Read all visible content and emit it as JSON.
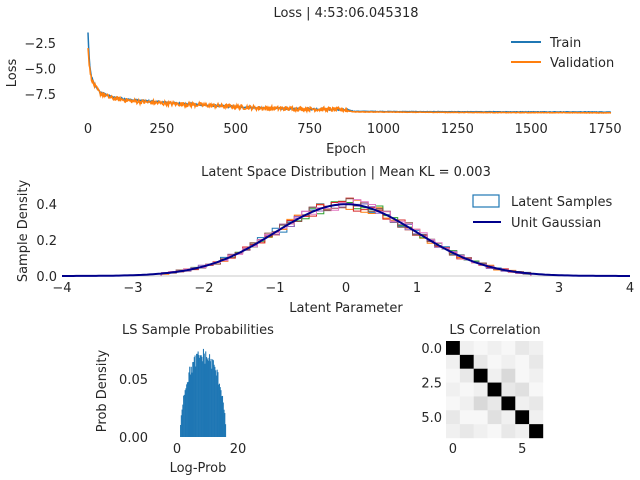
{
  "chart_data": [
    {
      "type": "line",
      "title": "Loss | 4:53:06.045318",
      "xlabel": "Epoch",
      "ylabel": "Loss",
      "xlim": [
        -20,
        1790
      ],
      "ylim": [
        -9.6,
        -1.2
      ],
      "xticks": [
        "0",
        "250",
        "500",
        "750",
        "1000",
        "1250",
        "1500",
        "1750"
      ],
      "yticks": [
        "-2.5",
        "-5.0",
        "-7.5"
      ],
      "legend": "top-right",
      "grid": false,
      "series": [
        {
          "name": "Train",
          "color": "#1f77b4",
          "x": [
            0,
            3,
            6,
            10,
            20,
            40,
            80,
            150,
            250,
            400,
            600,
            800,
            880,
            900,
            1000,
            1200,
            1400,
            1600,
            1770
          ],
          "y": [
            -1.5,
            -3.5,
            -4.8,
            -5.6,
            -6.5,
            -7.3,
            -7.8,
            -8.1,
            -8.3,
            -8.6,
            -8.9,
            -9.0,
            -9.05,
            -9.2,
            -9.22,
            -9.24,
            -9.25,
            -9.26,
            -9.27
          ]
        },
        {
          "name": "Validation",
          "color": "#ff7f0e",
          "x": [
            0,
            3,
            6,
            10,
            20,
            40,
            80,
            150,
            250,
            400,
            600,
            800,
            870,
            880,
            900,
            1000,
            1200,
            1400,
            1600,
            1770
          ],
          "y": [
            -2.9,
            -4.2,
            -5.1,
            -5.8,
            -6.6,
            -7.4,
            -7.9,
            -8.2,
            -8.4,
            -8.6,
            -8.9,
            -9.0,
            -9.05,
            -9.15,
            -9.25,
            -9.27,
            -9.3,
            -9.32,
            -9.33,
            -9.35
          ]
        }
      ]
    },
    {
      "type": "histogram",
      "title": "Latent Space Distribution | Mean KL = 0.003",
      "xlabel": "Latent Parameter",
      "ylabel": "Sample Density",
      "xlim": [
        -4,
        4
      ],
      "ylim": [
        0,
        0.5
      ],
      "xticks": [
        "-4",
        "-3",
        "-2",
        "-1",
        "0",
        "1",
        "2",
        "3",
        "4"
      ],
      "yticks": [
        "0.0",
        "0.2",
        "0.4"
      ],
      "legend": "top-right",
      "series": [
        {
          "name": "Latent Samples",
          "kind": "step-histogram",
          "dimensions": 7,
          "colors": [
            "#1f77b4",
            "#ff7f0e",
            "#2ca02c",
            "#d62728",
            "#9467bd",
            "#8c564b",
            "#e377c2"
          ],
          "range": [
            -2.6,
            2.6
          ],
          "bins": 50
        },
        {
          "name": "Unit Gaussian",
          "kind": "pdf",
          "color": "#00008b",
          "mean": 0,
          "std": 1
        }
      ]
    },
    {
      "type": "histogram",
      "title": "LS Sample Probabilities",
      "xlabel": "Log-Prob",
      "ylabel": "Prob Density",
      "xlim": [
        -7,
        26
      ],
      "ylim": [
        0,
        0.075
      ],
      "xticks": [
        "0",
        "20"
      ],
      "yticks": [
        "0.00",
        "0.05"
      ],
      "color": "#1f77b4",
      "bin_range": [
        -3.5,
        21.5
      ],
      "peak_density": 0.07,
      "center": 8.5
    },
    {
      "type": "heatmap",
      "title": "LS Correlation",
      "xticks": [
        "0",
        "5"
      ],
      "yticks": [
        "0.0",
        "2.5",
        "5.0"
      ],
      "size": 7,
      "values": [
        [
          1.0,
          0.02,
          0.01,
          0.02,
          0.01,
          0.03,
          0.02
        ],
        [
          0.02,
          1.0,
          0.03,
          0.01,
          0.02,
          0.01,
          0.03
        ],
        [
          0.01,
          0.03,
          1.0,
          0.02,
          0.05,
          0.01,
          0.02
        ],
        [
          0.02,
          0.01,
          0.02,
          1.0,
          0.03,
          0.04,
          0.01
        ],
        [
          0.01,
          0.02,
          0.05,
          0.03,
          1.0,
          0.02,
          0.03
        ],
        [
          0.03,
          0.01,
          0.01,
          0.04,
          0.02,
          1.0,
          0.02
        ],
        [
          0.02,
          0.03,
          0.02,
          0.01,
          0.03,
          0.02,
          1.0
        ]
      ]
    }
  ]
}
